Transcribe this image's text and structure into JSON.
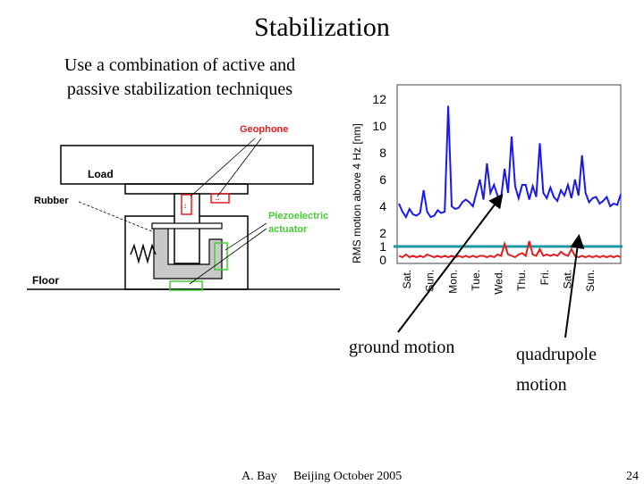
{
  "slide": {
    "title": "Stabilization",
    "subtitle_lines": [
      "Use a combination of active and",
      "passive stabilization techniques"
    ],
    "ground_label": "ground motion",
    "quad_label_lines": [
      "quadrupole",
      "motion"
    ],
    "footer_author": "A. Bay",
    "footer_event": "Beijing October 2005",
    "page_number": "24"
  },
  "diagram": {
    "load": "Load",
    "rubber": "Rubber",
    "geophone": "Geophone",
    "piezo_lines": [
      "Piezoelectric",
      "actuator"
    ],
    "floor": "Floor",
    "colors": {
      "red": "#e02020",
      "green": "#44cc33",
      "gray": "#c8c8c8"
    }
  },
  "chart_data": {
    "type": "line",
    "ylabel": "RMS motion above 4 Hz [nm]",
    "ylim": [
      0,
      13
    ],
    "yticks": [
      "0",
      "1",
      "2",
      "4",
      "6",
      "8",
      "10",
      "12"
    ],
    "xticks": [
      "Sat.",
      "Sun.",
      "Mon.",
      "Tue.",
      "Wed.",
      "Thu.",
      "Fri.",
      "Sat.",
      "Sun."
    ],
    "marker_level": 1,
    "series": [
      {
        "color": "#1a1ae6",
        "values": [
          4.2,
          3.6,
          3.2,
          3.8,
          3.4,
          3.3,
          3.5,
          5.2,
          3.6,
          3.2,
          3.3,
          3.7,
          3.5,
          3.6,
          11.5,
          4.0,
          3.8,
          3.9,
          4.3,
          4.5,
          4.3,
          4.0,
          5.0,
          6.0,
          4.5,
          7.2,
          5.0,
          5.6,
          4.8,
          4.6,
          6.8,
          5.0,
          9.2,
          5.5,
          4.6,
          5.6,
          5.6,
          4.5,
          5.5,
          4.7,
          8.7,
          5.0,
          4.6,
          5.4,
          4.7,
          4.4,
          5.2,
          4.8,
          5.6,
          4.6,
          6.0,
          4.8,
          7.8,
          5.0,
          4.3,
          4.6,
          4.7,
          4.2,
          4.4,
          4.7,
          4.0,
          4.2,
          4.1,
          4.9
        ]
      },
      {
        "color": "#e02020",
        "values": [
          0.3,
          0.2,
          0.4,
          0.2,
          0.3,
          0.2,
          0.3,
          0.2,
          0.4,
          0.3,
          0.2,
          0.3,
          0.2,
          0.3,
          0.2,
          0.3,
          0.2,
          0.3,
          0.2,
          0.3,
          0.2,
          0.3,
          0.2,
          0.3,
          0.3,
          0.2,
          0.3,
          0.2,
          0.4,
          0.3,
          1.2,
          0.4,
          0.3,
          0.2,
          0.4,
          0.5,
          0.3,
          1.4,
          0.4,
          0.3,
          0.8,
          0.3,
          0.4,
          0.3,
          0.4,
          0.3,
          0.6,
          0.4,
          0.3,
          0.8,
          0.3,
          0.2,
          0.3,
          0.2,
          0.3,
          0.2,
          0.3,
          0.2,
          0.3,
          0.2,
          0.3,
          0.2,
          0.3,
          0.2
        ]
      }
    ]
  }
}
